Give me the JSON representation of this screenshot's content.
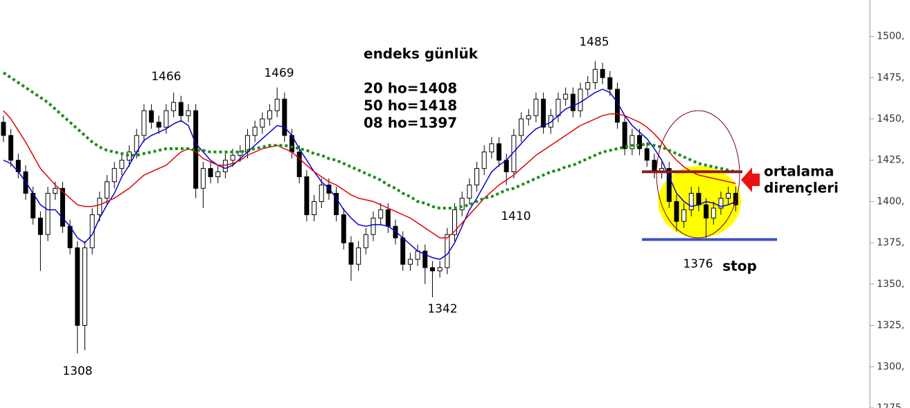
{
  "chart_data": {
    "type": "candlestick",
    "title": "endeks günlük",
    "notes": [
      "20 ho=1408",
      "50 ho=1418",
      "08 ho=1397"
    ],
    "annotations": [
      "1466",
      "1469",
      "1308",
      "1342",
      "1410",
      "1485",
      "1376",
      "stop",
      "ortalama",
      "dirençleri"
    ],
    "ylim": [
      1275,
      1522
    ],
    "yticks": [
      {
        "value": 1275,
        "label": "1275,"
      },
      {
        "value": 1300,
        "label": "1300,"
      },
      {
        "value": 1325,
        "label": "1325,"
      },
      {
        "value": 1350,
        "label": "1350,"
      },
      {
        "value": 1375,
        "label": "1375,"
      },
      {
        "value": 1400,
        "label": "1400,"
      },
      {
        "value": 1425,
        "label": "1425,"
      },
      {
        "value": 1450,
        "label": "1450,"
      },
      {
        "value": 1475,
        "label": "1475,"
      },
      {
        "value": 1500,
        "label": "1500,"
      }
    ],
    "open": [
      1448,
      1440,
      1425,
      1418,
      1405,
      1390,
      1380,
      1405,
      1408,
      1385,
      1372,
      1325,
      1372,
      1392,
      1402,
      1412,
      1420,
      1425,
      1430,
      1440,
      1455,
      1448,
      1445,
      1455,
      1460,
      1452,
      1455,
      1408,
      1420,
      1415,
      1418,
      1425,
      1428,
      1430,
      1440,
      1445,
      1450,
      1455,
      1462,
      1440,
      1430,
      1415,
      1392,
      1400,
      1410,
      1405,
      1392,
      1375,
      1362,
      1372,
      1380,
      1390,
      1395,
      1385,
      1378,
      1362,
      1365,
      1370,
      1360,
      1358,
      1360,
      1380,
      1395,
      1402,
      1410,
      1420,
      1430,
      1435,
      1425,
      1418,
      1440,
      1450,
      1452,
      1462,
      1445,
      1452,
      1462,
      1465,
      1455,
      1468,
      1472,
      1480,
      1475,
      1468,
      1448,
      1432,
      1440,
      1432,
      1425,
      1418,
      1420,
      1400,
      1388,
      1395,
      1405,
      1398,
      1390,
      1396,
      1402,
      1405
    ],
    "high": [
      1452,
      1444,
      1429,
      1422,
      1409,
      1394,
      1409,
      1412,
      1412,
      1389,
      1376,
      1376,
      1396,
      1406,
      1416,
      1424,
      1429,
      1434,
      1444,
      1459,
      1459,
      1452,
      1459,
      1466,
      1464,
      1459,
      1459,
      1424,
      1424,
      1422,
      1429,
      1432,
      1434,
      1444,
      1449,
      1454,
      1459,
      1469,
      1466,
      1444,
      1434,
      1419,
      1404,
      1414,
      1414,
      1409,
      1396,
      1379,
      1376,
      1384,
      1394,
      1399,
      1399,
      1389,
      1382,
      1369,
      1374,
      1374,
      1364,
      1364,
      1384,
      1399,
      1406,
      1414,
      1424,
      1434,
      1439,
      1439,
      1429,
      1444,
      1454,
      1456,
      1466,
      1466,
      1456,
      1466,
      1469,
      1469,
      1472,
      1476,
      1485,
      1484,
      1479,
      1472,
      1452,
      1444,
      1444,
      1436,
      1429,
      1424,
      1424,
      1404,
      1399,
      1409,
      1409,
      1402,
      1400,
      1406,
      1409,
      1409
    ],
    "low": [
      1436,
      1421,
      1414,
      1401,
      1386,
      1358,
      1376,
      1401,
      1381,
      1368,
      1308,
      1310,
      1368,
      1388,
      1398,
      1408,
      1416,
      1421,
      1426,
      1436,
      1444,
      1441,
      1441,
      1451,
      1448,
      1448,
      1402,
      1396,
      1411,
      1411,
      1414,
      1421,
      1424,
      1426,
      1436,
      1441,
      1446,
      1451,
      1436,
      1426,
      1411,
      1388,
      1388,
      1396,
      1401,
      1388,
      1371,
      1352,
      1358,
      1368,
      1376,
      1386,
      1381,
      1374,
      1358,
      1358,
      1361,
      1350,
      1342,
      1354,
      1356,
      1376,
      1391,
      1398,
      1406,
      1416,
      1426,
      1421,
      1410,
      1414,
      1436,
      1446,
      1448,
      1441,
      1441,
      1448,
      1458,
      1451,
      1451,
      1464,
      1468,
      1471,
      1464,
      1444,
      1428,
      1428,
      1428,
      1421,
      1414,
      1414,
      1396,
      1382,
      1384,
      1391,
      1394,
      1378,
      1386,
      1392,
      1398,
      1394
    ],
    "close": [
      1440,
      1425,
      1418,
      1405,
      1390,
      1380,
      1405,
      1408,
      1385,
      1372,
      1325,
      1372,
      1392,
      1402,
      1412,
      1420,
      1425,
      1430,
      1440,
      1455,
      1448,
      1445,
      1455,
      1460,
      1452,
      1455,
      1408,
      1420,
      1415,
      1418,
      1425,
      1428,
      1430,
      1440,
      1445,
      1450,
      1455,
      1462,
      1440,
      1430,
      1415,
      1392,
      1400,
      1410,
      1405,
      1392,
      1375,
      1362,
      1372,
      1380,
      1390,
      1395,
      1385,
      1378,
      1362,
      1365,
      1370,
      1360,
      1358,
      1360,
      1380,
      1395,
      1402,
      1410,
      1420,
      1430,
      1435,
      1425,
      1418,
      1440,
      1450,
      1452,
      1462,
      1445,
      1452,
      1462,
      1465,
      1455,
      1468,
      1472,
      1480,
      1475,
      1468,
      1448,
      1432,
      1440,
      1432,
      1425,
      1418,
      1420,
      1400,
      1388,
      1395,
      1405,
      1398,
      1390,
      1396,
      1402,
      1405,
      1398
    ],
    "up_color": "#ffffff",
    "down_color": "#000000",
    "series": [
      {
        "color": "#0000cc",
        "style": "solid",
        "values": [
          1425,
          1423,
          1418,
          1412,
          1405,
          1398,
          1395,
          1395,
          1390,
          1385,
          1378,
          1375,
          1380,
          1390,
          1398,
          1405,
          1415,
          1422,
          1430,
          1437,
          1440,
          1442,
          1444,
          1447,
          1449,
          1446,
          1435,
          1430,
          1425,
          1422,
          1420,
          1422,
          1426,
          1430,
          1434,
          1438,
          1442,
          1446,
          1445,
          1440,
          1432,
          1425,
          1418,
          1412,
          1408,
          1402,
          1395,
          1390,
          1386,
          1385,
          1386,
          1386,
          1385,
          1382,
          1378,
          1374,
          1370,
          1368,
          1366,
          1365,
          1368,
          1375,
          1385,
          1395,
          1402,
          1410,
          1418,
          1422,
          1425,
          1430,
          1435,
          1440,
          1444,
          1446,
          1448,
          1452,
          1456,
          1458,
          1460,
          1463,
          1466,
          1468,
          1466,
          1460,
          1452,
          1446,
          1442,
          1438,
          1432,
          1425,
          1415,
          1405,
          1400,
          1397,
          1398,
          1400,
          1399,
          1397,
          1398,
          1400
        ]
      },
      {
        "color": "#e00000",
        "style": "solid",
        "values": [
          1455,
          1450,
          1443,
          1436,
          1428,
          1420,
          1415,
          1410,
          1406,
          1402,
          1398,
          1397,
          1397,
          1398,
          1400,
          1402,
          1405,
          1408,
          1412,
          1416,
          1418,
          1420,
          1422,
          1426,
          1430,
          1432,
          1430,
          1426,
          1424,
          1422,
          1422,
          1423,
          1425,
          1428,
          1430,
          1432,
          1433,
          1434,
          1432,
          1430,
          1426,
          1422,
          1418,
          1415,
          1412,
          1410,
          1407,
          1404,
          1402,
          1401,
          1400,
          1398,
          1396,
          1394,
          1392,
          1390,
          1387,
          1384,
          1381,
          1378,
          1378,
          1382,
          1387,
          1392,
          1397,
          1402,
          1406,
          1410,
          1413,
          1416,
          1420,
          1424,
          1428,
          1431,
          1434,
          1437,
          1440,
          1443,
          1446,
          1448,
          1450,
          1452,
          1453,
          1453,
          1452,
          1450,
          1448,
          1445,
          1441,
          1436,
          1430,
          1425,
          1421,
          1418,
          1416,
          1415,
          1414,
          1413,
          1412,
          1411
        ]
      },
      {
        "color": "#1a8c1a",
        "style": "dotted",
        "values": [
          1478,
          1475,
          1472,
          1469,
          1466,
          1463,
          1460,
          1456,
          1452,
          1448,
          1444,
          1440,
          1436,
          1433,
          1431,
          1430,
          1429,
          1428,
          1428,
          1429,
          1430,
          1431,
          1432,
          1432,
          1432,
          1432,
          1431,
          1431,
          1430,
          1430,
          1430,
          1430,
          1430,
          1431,
          1432,
          1433,
          1434,
          1434,
          1434,
          1433,
          1432,
          1431,
          1429,
          1428,
          1426,
          1425,
          1423,
          1421,
          1419,
          1417,
          1415,
          1413,
          1410,
          1408,
          1405,
          1403,
          1400,
          1399,
          1397,
          1396,
          1396,
          1396,
          1397,
          1398,
          1400,
          1402,
          1403,
          1405,
          1407,
          1408,
          1410,
          1412,
          1414,
          1416,
          1418,
          1419,
          1421,
          1422,
          1424,
          1426,
          1428,
          1430,
          1431,
          1432,
          1433,
          1434,
          1434,
          1435,
          1434,
          1433,
          1431,
          1429,
          1427,
          1425,
          1423,
          1422,
          1421,
          1420,
          1419,
          1418
        ]
      }
    ],
    "hlines": [
      {
        "value": 1418,
        "color": "#8b1a1a"
      },
      {
        "value": 1377,
        "color": "#3d4fc8"
      }
    ]
  }
}
